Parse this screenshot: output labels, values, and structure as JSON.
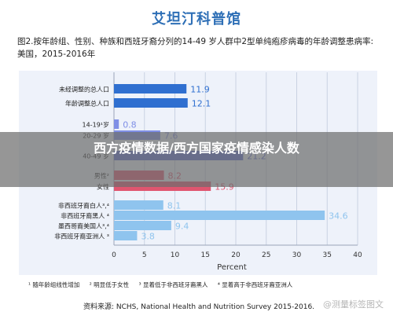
{
  "brand": "艾坦汀科普馆",
  "figure_title": "图2.按年龄组、性别、种族和西班牙裔分列的14-49 岁人群中2型单纯疱疹病毒的年龄调整患病率:美国，2015-2016年",
  "overlay_text": "西方疫情数据/西方国家疫情感染人数",
  "chart_data": {
    "type": "bar",
    "orientation": "horizontal",
    "xlabel": "Percent",
    "xlim": [
      0,
      40
    ],
    "xticks": [
      0,
      5,
      10,
      15,
      20,
      25,
      30,
      35,
      40
    ],
    "grid": true,
    "categories": [
      {
        "label": "未经调整的总人口",
        "value": 11.9,
        "color": "#2f6fd0"
      },
      {
        "label": "年龄调整总人口",
        "value": 12.1,
        "color": "#2f6fd0"
      },
      {
        "label": "14-19¹岁",
        "value": 0.8,
        "color": "#7f8fe6"
      },
      {
        "label": "20-29 岁",
        "value": 7.6,
        "color": "#7f8fe6"
      },
      {
        "label": "40-49 岁",
        "value": 21.2,
        "color": "#5a6bd2"
      },
      {
        "label": "男性²",
        "value": 8.2,
        "color": "#e0556f"
      },
      {
        "label": "女性",
        "value": 15.9,
        "color": "#e0556f"
      },
      {
        "label": "非西班牙裔白人³,⁴",
        "value": 8.1,
        "color": "#8fc4ee"
      },
      {
        "label": "非西班牙裔黑人 ⁴",
        "value": 34.6,
        "color": "#8fc4ee"
      },
      {
        "label": "墨西哥裔美国人³,⁴",
        "value": 9.4,
        "color": "#8fc4ee"
      },
      {
        "label": "非西班牙裔亚洲人 ³",
        "value": 3.8,
        "color": "#8fc4ee"
      }
    ]
  },
  "footnotes": [
    "¹ 随年龄组线性增加",
    "² 明显低于女性",
    "³ 显着低于非西班牙裔黑人",
    "⁴ 显着高于非西班牙裔亚洲人"
  ],
  "source": "资料来源: NCHS, National Health and Nutrition Survey 2015-2016.",
  "watermark": "@测量标签图文"
}
